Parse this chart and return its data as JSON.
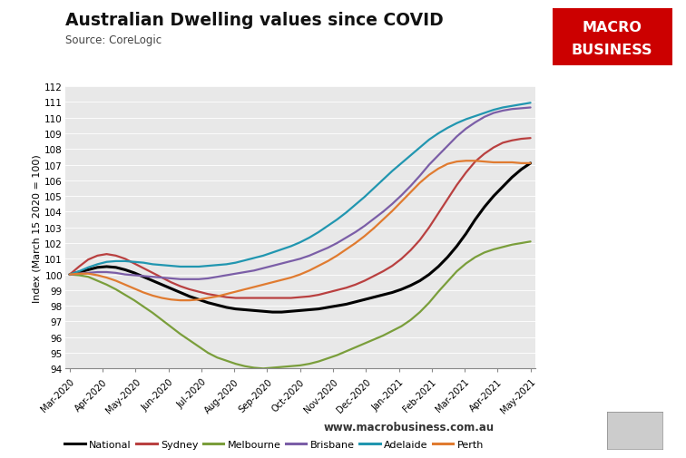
{
  "title": "Australian Dwelling values since COVID",
  "subtitle": "Source: CoreLogic",
  "ylabel": "Index (March 15 2020 = 100)",
  "watermark": "www.macrobusiness.com.au",
  "logo_text1": "MACRO",
  "logo_text2": "BUSINESS",
  "logo_color": "#cc0000",
  "ylim": [
    94,
    112
  ],
  "background_color": "#e8e8e8",
  "series_order": [
    "National",
    "Sydney",
    "Melbourne",
    "Brisbane",
    "Adelaide",
    "Perth"
  ],
  "series": {
    "National": {
      "color": "#000000",
      "linewidth": 2.2,
      "values": [
        100.0,
        100.15,
        100.3,
        100.45,
        100.5,
        100.45,
        100.3,
        100.1,
        99.85,
        99.6,
        99.35,
        99.1,
        98.85,
        98.6,
        98.4,
        98.2,
        98.05,
        97.9,
        97.8,
        97.75,
        97.7,
        97.65,
        97.6,
        97.6,
        97.65,
        97.7,
        97.75,
        97.8,
        97.9,
        98.0,
        98.1,
        98.25,
        98.4,
        98.55,
        98.7,
        98.85,
        99.05,
        99.3,
        99.6,
        100.0,
        100.5,
        101.1,
        101.8,
        102.6,
        103.5,
        104.3,
        105.0,
        105.6,
        106.2,
        106.7,
        107.1
      ]
    },
    "Sydney": {
      "color": "#b94040",
      "linewidth": 1.6,
      "values": [
        100.0,
        100.5,
        100.95,
        101.2,
        101.3,
        101.2,
        101.0,
        100.7,
        100.4,
        100.1,
        99.8,
        99.5,
        99.25,
        99.05,
        98.9,
        98.75,
        98.65,
        98.55,
        98.5,
        98.5,
        98.5,
        98.5,
        98.5,
        98.5,
        98.5,
        98.55,
        98.6,
        98.7,
        98.85,
        99.0,
        99.15,
        99.35,
        99.6,
        99.9,
        100.2,
        100.55,
        101.0,
        101.55,
        102.2,
        103.0,
        103.9,
        104.8,
        105.7,
        106.5,
        107.2,
        107.7,
        108.1,
        108.4,
        108.55,
        108.65,
        108.7
      ]
    },
    "Melbourne": {
      "color": "#7a9e3b",
      "linewidth": 1.6,
      "values": [
        100.0,
        99.95,
        99.85,
        99.6,
        99.35,
        99.05,
        98.7,
        98.35,
        97.95,
        97.55,
        97.1,
        96.65,
        96.2,
        95.8,
        95.4,
        95.0,
        94.7,
        94.5,
        94.3,
        94.15,
        94.05,
        94.0,
        94.05,
        94.1,
        94.15,
        94.2,
        94.3,
        94.45,
        94.65,
        94.85,
        95.1,
        95.35,
        95.6,
        95.85,
        96.1,
        96.4,
        96.7,
        97.1,
        97.6,
        98.2,
        98.9,
        99.55,
        100.2,
        100.7,
        101.1,
        101.4,
        101.6,
        101.75,
        101.9,
        102.0,
        102.1
      ]
    },
    "Brisbane": {
      "color": "#7b5ea7",
      "linewidth": 1.6,
      "values": [
        100.0,
        100.05,
        100.1,
        100.15,
        100.15,
        100.1,
        100.0,
        99.95,
        99.9,
        99.85,
        99.8,
        99.75,
        99.7,
        99.7,
        99.7,
        99.75,
        99.85,
        99.95,
        100.05,
        100.15,
        100.25,
        100.4,
        100.55,
        100.7,
        100.85,
        101.0,
        101.2,
        101.45,
        101.7,
        102.0,
        102.35,
        102.7,
        103.1,
        103.55,
        104.0,
        104.5,
        105.05,
        105.65,
        106.3,
        107.0,
        107.6,
        108.2,
        108.8,
        109.3,
        109.7,
        110.05,
        110.3,
        110.45,
        110.55,
        110.6,
        110.65
      ]
    },
    "Adelaide": {
      "color": "#2196b0",
      "linewidth": 1.6,
      "values": [
        100.0,
        100.2,
        100.45,
        100.65,
        100.8,
        100.85,
        100.85,
        100.8,
        100.75,
        100.65,
        100.6,
        100.55,
        100.5,
        100.5,
        100.5,
        100.55,
        100.6,
        100.65,
        100.75,
        100.9,
        101.05,
        101.2,
        101.4,
        101.6,
        101.8,
        102.05,
        102.35,
        102.7,
        103.1,
        103.5,
        103.95,
        104.45,
        104.95,
        105.5,
        106.05,
        106.6,
        107.1,
        107.6,
        108.1,
        108.6,
        109.0,
        109.35,
        109.65,
        109.9,
        110.1,
        110.3,
        110.5,
        110.65,
        110.75,
        110.85,
        110.95
      ]
    },
    "Perth": {
      "color": "#e07b30",
      "linewidth": 1.6,
      "values": [
        100.0,
        100.05,
        100.05,
        99.95,
        99.8,
        99.6,
        99.35,
        99.1,
        98.85,
        98.65,
        98.5,
        98.4,
        98.35,
        98.35,
        98.4,
        98.5,
        98.6,
        98.75,
        98.9,
        99.05,
        99.2,
        99.35,
        99.5,
        99.65,
        99.8,
        100.0,
        100.25,
        100.55,
        100.85,
        101.2,
        101.6,
        102.0,
        102.45,
        102.95,
        103.5,
        104.05,
        104.65,
        105.25,
        105.85,
        106.35,
        106.75,
        107.05,
        107.2,
        107.25,
        107.25,
        107.2,
        107.15,
        107.15,
        107.15,
        107.1,
        107.1
      ]
    }
  },
  "x_tick_labels": [
    "Mar-2020",
    "Apr-2020",
    "May-2020",
    "Jun-2020",
    "Jul-2020",
    "Aug-2020",
    "Sep-2020",
    "Oct-2020",
    "Nov-2020",
    "Dec-2020",
    "Jan-2021",
    "Feb-2021",
    "Mar-2021",
    "Apr-2021",
    "May-2021"
  ],
  "n_points": 51
}
